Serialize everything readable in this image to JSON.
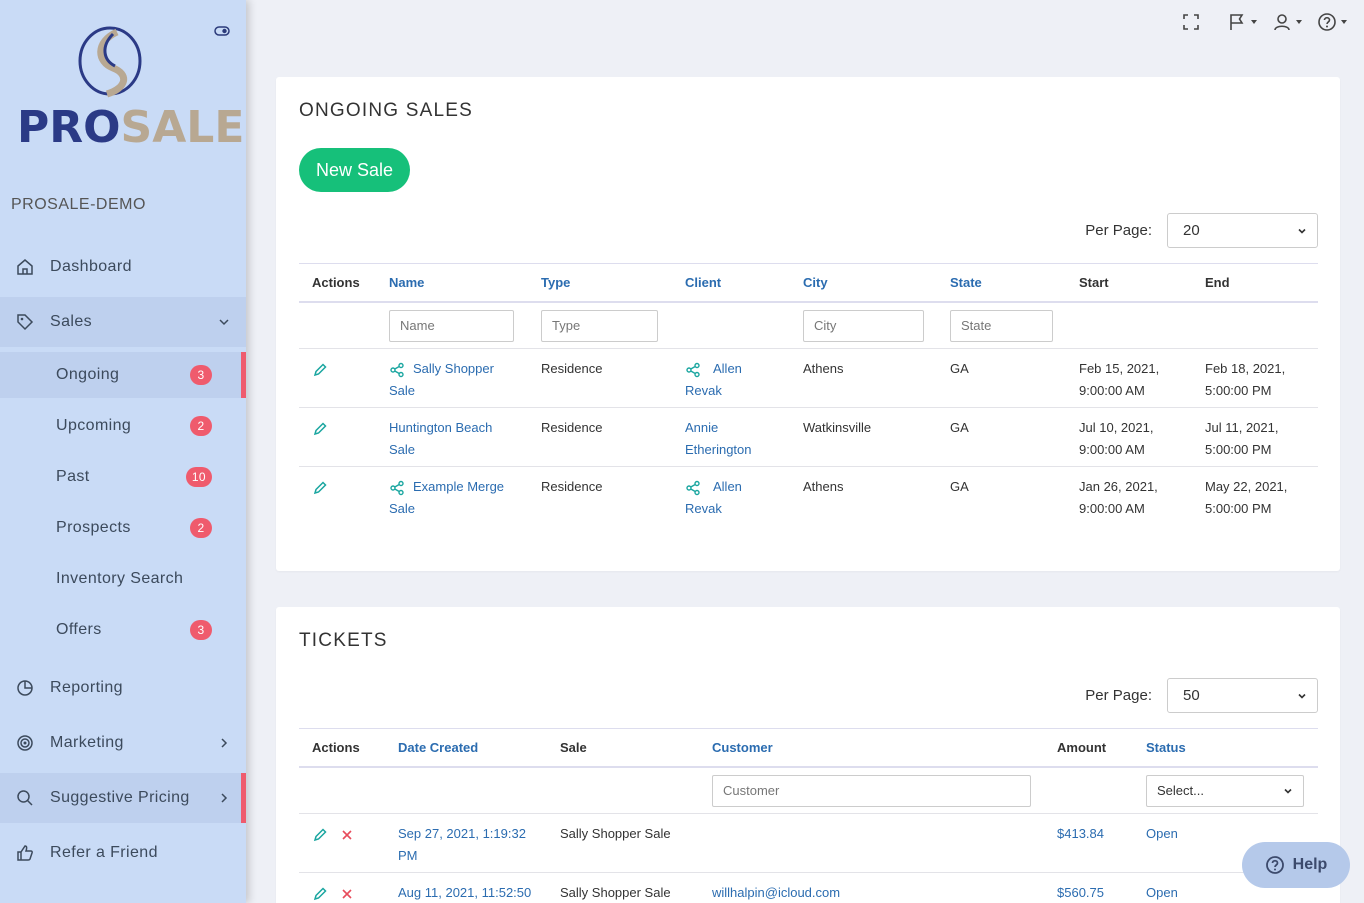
{
  "brand": {
    "name_part1": "PRO",
    "name_part2": "SALE",
    "org": "PROSALE-DEMO"
  },
  "sidebar": {
    "items": [
      {
        "label": "Dashboard",
        "icon": "home-icon"
      },
      {
        "label": "Sales",
        "icon": "tag-icon"
      },
      {
        "label": "Reporting",
        "icon": "pie-chart-icon"
      },
      {
        "label": "Marketing",
        "icon": "target-icon"
      },
      {
        "label": "Suggestive Pricing",
        "icon": "search-icon"
      },
      {
        "label": "Refer a Friend",
        "icon": "thumbs-up-icon"
      }
    ],
    "sales_sub": [
      {
        "label": "Ongoing",
        "badge": "3"
      },
      {
        "label": "Upcoming",
        "badge": "2"
      },
      {
        "label": "Past",
        "badge": "10"
      },
      {
        "label": "Prospects",
        "badge": "2"
      },
      {
        "label": "Inventory Search",
        "badge": ""
      },
      {
        "label": "Offers",
        "badge": "3"
      }
    ]
  },
  "ongoing": {
    "title": "ONGOING SALES",
    "new_sale_label": "New Sale",
    "per_page_label": "Per Page:",
    "per_page_value": "20",
    "headers": [
      "Actions",
      "Name",
      "Type",
      "Client",
      "City",
      "State",
      "Start",
      "End"
    ],
    "filters": {
      "name": "Name",
      "type": "Type",
      "city": "City",
      "state": "State"
    },
    "rows": [
      {
        "name1": "Sally Shopper",
        "name2": "Sale",
        "type": "Residence",
        "client1": "Allen",
        "client2": "Revak",
        "city": "Athens",
        "state": "GA",
        "start1": "Feb 15, 2021,",
        "start2": "9:00:00 AM",
        "end1": "Feb 18, 2021,",
        "end2": "5:00:00 PM"
      },
      {
        "name1": "Huntington Beach",
        "name2": "Sale",
        "type": "Residence",
        "client1": "Annie",
        "client2": "Etherington",
        "city": "Watkinsville",
        "state": "GA",
        "start1": "Jul 10, 2021,",
        "start2": "9:00:00 AM",
        "end1": "Jul 11, 2021,",
        "end2": "5:00:00 PM"
      },
      {
        "name1": "Example Merge",
        "name2": "Sale",
        "type": "Residence",
        "client1": "Allen",
        "client2": "Revak",
        "city": "Athens",
        "state": "GA",
        "start1": "Jan 26, 2021,",
        "start2": "9:00:00 AM",
        "end1": "May 22, 2021,",
        "end2": "5:00:00 PM"
      }
    ]
  },
  "tickets": {
    "title": "TICKETS",
    "per_page_label": "Per Page:",
    "per_page_value": "50",
    "headers": [
      "Actions",
      "Date Created",
      "Sale",
      "Customer",
      "Amount",
      "Status"
    ],
    "filters": {
      "customer": "Customer",
      "status": "Select..."
    },
    "rows": [
      {
        "date1": "Sep 27, 2021, 1:19:32",
        "date2": "PM",
        "sale": "Sally Shopper Sale",
        "customer": "",
        "amount": "$413.84",
        "status": "Open"
      },
      {
        "date1": "Aug 11, 2021, 11:52:50",
        "date2": "",
        "sale": "Sally Shopper Sale",
        "customer": "willhalpin@icloud.com",
        "amount": "$560.75",
        "status": "Open"
      }
    ]
  },
  "help_label": "Help",
  "colors": {
    "accent_green": "#16c07a",
    "badge_red": "#ef5b6d",
    "link_blue": "#2b6cb0",
    "sidebar_bg": "#c9dbf6"
  }
}
